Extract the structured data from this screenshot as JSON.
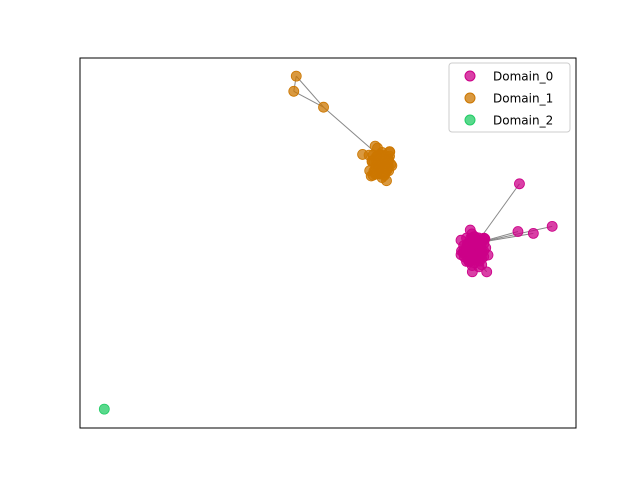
{
  "chart_data": {
    "type": "scatter",
    "title": "",
    "xlabel": "",
    "ylabel": "",
    "axes_ticks_visible": false,
    "grid": false,
    "legend_placement": "top-right",
    "xlim": [
      0,
      100
    ],
    "ylim": [
      0,
      100
    ],
    "series": [
      {
        "name": "Domain_0",
        "color": "#cc0088",
        "cluster": {
          "center": [
            79.5,
            48.0
          ],
          "spread": [
            1.3,
            2.2
          ],
          "count": 90
        },
        "points": [
          [
            88.6,
            66.0
          ],
          [
            88.3,
            53.1
          ],
          [
            91.4,
            52.6
          ],
          [
            95.2,
            54.5
          ],
          [
            82.0,
            42.2
          ],
          [
            79.0,
            47.0
          ],
          [
            80.0,
            50.0
          ]
        ]
      },
      {
        "name": "Domain_1",
        "color": "#cc7700",
        "cluster": {
          "center": [
            60.8,
            71.4
          ],
          "spread": [
            1.1,
            2.2
          ],
          "count": 90
        },
        "points": [
          [
            43.6,
            95.1
          ],
          [
            43.1,
            91.0
          ],
          [
            49.1,
            86.7
          ],
          [
            60.8,
            73.0
          ]
        ]
      },
      {
        "name": "Domain_2",
        "color": "#22cc66",
        "points": [
          [
            4.9,
            5.1
          ]
        ]
      }
    ],
    "edges": [
      [
        [
          49.1,
          86.7
        ],
        [
          43.6,
          95.1
        ]
      ],
      [
        [
          49.1,
          86.7
        ],
        [
          43.1,
          91.0
        ]
      ],
      [
        [
          43.6,
          95.1
        ],
        [
          43.1,
          91.0
        ]
      ],
      [
        [
          49.1,
          86.7
        ],
        [
          60.8,
          73.0
        ]
      ],
      [
        [
          80.0,
          50.0
        ],
        [
          88.6,
          66.0
        ]
      ],
      [
        [
          80.0,
          50.0
        ],
        [
          88.3,
          53.1
        ]
      ],
      [
        [
          80.0,
          50.0
        ],
        [
          91.4,
          52.6
        ]
      ],
      [
        [
          80.0,
          50.0
        ],
        [
          95.2,
          54.5
        ]
      ],
      [
        [
          79.0,
          47.0
        ],
        [
          82.0,
          42.2
        ]
      ]
    ]
  }
}
